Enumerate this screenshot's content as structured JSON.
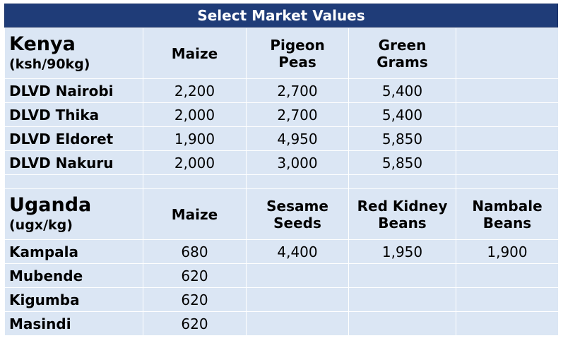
{
  "title": "Select Market Values",
  "kenya": {
    "country": "Kenya",
    "unit": "(ksh/90kg)",
    "headers": [
      "Maize",
      "Pigeon Peas",
      "Green Grams",
      ""
    ],
    "rows": [
      {
        "location": "DLVD Nairobi",
        "values": [
          "2,200",
          "2,700",
          "5,400",
          ""
        ]
      },
      {
        "location": "DLVD Thika",
        "values": [
          "2,000",
          "2,700",
          "5,400",
          ""
        ]
      },
      {
        "location": "DLVD Eldoret",
        "values": [
          "1,900",
          "4,950",
          "5,850",
          ""
        ]
      },
      {
        "location": "DLVD Nakuru",
        "values": [
          "2,000",
          "3,000",
          "5,850",
          ""
        ]
      }
    ]
  },
  "uganda": {
    "country": "Uganda",
    "unit": "(ugx/kg)",
    "headers": [
      "Maize",
      "Sesame Seeds",
      "Red Kidney Beans",
      "Nambale Beans"
    ],
    "rows": [
      {
        "location": "Kampala",
        "values": [
          "680",
          "4,400",
          "1,950",
          "1,900"
        ]
      },
      {
        "location": "Mubende",
        "values": [
          "620",
          "",
          "",
          ""
        ]
      },
      {
        "location": "Kigumba",
        "values": [
          "620",
          "",
          "",
          ""
        ]
      },
      {
        "location": "Masindi",
        "values": [
          "620",
          "",
          "",
          ""
        ]
      }
    ]
  }
}
